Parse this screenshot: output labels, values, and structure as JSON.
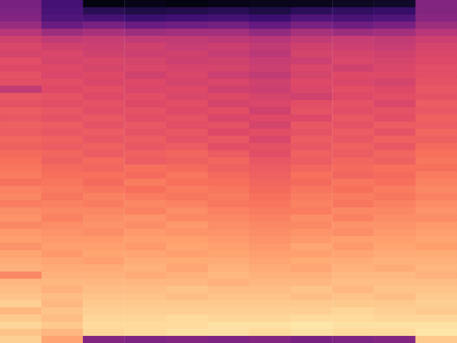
{
  "chart_data": {
    "type": "heatmap",
    "tick_labels": false,
    "grid": false,
    "zlim": [
      -80,
      0
    ],
    "cells": [
      [
        -52,
        -62,
        -78,
        -77,
        -78,
        -77,
        -76,
        -76,
        -75,
        -74,
        -50
      ],
      [
        -51,
        -61,
        -68,
        -70,
        -69,
        -68,
        -70,
        -67,
        -66,
        -65,
        -50
      ],
      [
        -50,
        -60,
        -62,
        -64,
        -63,
        -62,
        -64,
        -60,
        -61,
        -60,
        -49
      ],
      [
        -46,
        -55,
        -52,
        -55,
        -54,
        -53,
        -56,
        -52,
        -54,
        -52,
        -45
      ],
      [
        -40,
        -45,
        -43,
        -45,
        -44,
        -44,
        -47,
        -43,
        -45,
        -44,
        -40
      ],
      [
        -35,
        -38,
        -37,
        -38,
        -38,
        -39,
        -40,
        -38,
        -37,
        -38,
        -36
      ],
      [
        -33,
        -35,
        -36,
        -35,
        -37,
        -36,
        -38,
        -35,
        -36,
        -37,
        -34
      ],
      [
        -34,
        -33,
        -35,
        -36,
        -35,
        -37,
        -39,
        -34,
        -34,
        -35,
        -33
      ],
      [
        -31,
        -34,
        -33,
        -34,
        -36,
        -35,
        -37,
        -36,
        -33,
        -34,
        -32
      ],
      [
        -32,
        -32,
        -34,
        -33,
        -34,
        -34,
        -36,
        -33,
        -35,
        -33,
        -31
      ],
      [
        -30,
        -33,
        -32,
        -35,
        -33,
        -36,
        -38,
        -34,
        -32,
        -32,
        -31
      ],
      [
        -31,
        -31,
        -33,
        -32,
        -34,
        -33,
        -35,
        -32,
        -33,
        -34,
        -30
      ],
      [
        -38,
        -32,
        -31,
        -33,
        -32,
        -35,
        -36,
        -33,
        -31,
        -32,
        -29
      ],
      [
        -29,
        -30,
        -32,
        -31,
        -33,
        -32,
        -34,
        -35,
        -32,
        -31,
        -30
      ],
      [
        -30,
        -31,
        -30,
        -32,
        -31,
        -34,
        -33,
        -31,
        -30,
        -33,
        -28
      ],
      [
        -28,
        -29,
        -31,
        -30,
        -32,
        -31,
        -35,
        -30,
        -31,
        -30,
        -29
      ],
      [
        -29,
        -30,
        -29,
        -31,
        -30,
        -33,
        -32,
        -32,
        -29,
        -31,
        -27
      ],
      [
        -27,
        -28,
        -30,
        -29,
        -31,
        -30,
        -34,
        -29,
        -30,
        -28,
        -28
      ],
      [
        -28,
        -29,
        -28,
        -30,
        -29,
        -32,
        -31,
        -30,
        -28,
        -30,
        -26
      ],
      [
        -26,
        -27,
        -29,
        -28,
        -30,
        -29,
        -33,
        -28,
        -29,
        -27,
        -27
      ],
      [
        -27,
        -28,
        -27,
        -29,
        -28,
        -31,
        -30,
        -29,
        -27,
        -29,
        -25
      ],
      [
        -25,
        -26,
        -28,
        -27,
        -26,
        -28,
        -31,
        -27,
        -28,
        -26,
        -24
      ],
      [
        -24,
        -27,
        -25,
        -28,
        -27,
        -26,
        -29,
        -28,
        -26,
        -27,
        -23
      ],
      [
        -23,
        -25,
        -26,
        -24,
        -25,
        -27,
        -28,
        -26,
        -25,
        -24,
        -24
      ],
      [
        -22,
        -24,
        -24,
        -25,
        -23,
        -25,
        -27,
        -24,
        -26,
        -25,
        -22
      ],
      [
        -24,
        -23,
        -25,
        -22,
        -24,
        -24,
        -26,
        -25,
        -23,
        -24,
        -21
      ],
      [
        -21,
        -22,
        -23,
        -24,
        -22,
        -23,
        -25,
        -23,
        -24,
        -22,
        -20
      ],
      [
        -20,
        -23,
        -21,
        -22,
        -23,
        -22,
        -24,
        -22,
        -22,
        -23,
        -21
      ],
      [
        -22,
        -21,
        -22,
        -20,
        -21,
        -23,
        -23,
        -21,
        -23,
        -21,
        -19
      ],
      [
        -19,
        -20,
        -20,
        -21,
        -19,
        -21,
        -22,
        -22,
        -20,
        -20,
        -18
      ],
      [
        -18,
        -21,
        -19,
        -18,
        -20,
        -20,
        -21,
        -19,
        -21,
        -19,
        -19
      ],
      [
        -20,
        -19,
        -18,
        -19,
        -17,
        -19,
        -20,
        -20,
        -18,
        -18,
        -17
      ],
      [
        -17,
        -18,
        -19,
        -17,
        -18,
        -18,
        -19,
        -18,
        -19,
        -17,
        -16
      ],
      [
        -16,
        -17,
        -17,
        -16,
        -16,
        -17,
        -18,
        -17,
        -16,
        -16,
        -15
      ],
      [
        -18,
        -16,
        -16,
        -17,
        -15,
        -16,
        -17,
        -15,
        -17,
        -15,
        -16
      ],
      [
        -15,
        -17,
        -15,
        -15,
        -16,
        -15,
        -16,
        -16,
        -15,
        -14,
        -14
      ],
      [
        -14,
        -15,
        -16,
        -14,
        -14,
        -14,
        -15,
        -14,
        -14,
        -13,
        -13
      ],
      [
        -13,
        -14,
        -14,
        -13,
        -15,
        -13,
        -14,
        -15,
        -13,
        -14,
        -12
      ],
      [
        -20,
        -13,
        -13,
        -14,
        -13,
        -12,
        -13,
        -13,
        -12,
        -12,
        -13
      ],
      [
        -12,
        -12,
        -12,
        -12,
        -12,
        -13,
        -12,
        -12,
        -11,
        -11,
        -11
      ],
      [
        -11,
        -13,
        -11,
        -11,
        -10,
        -11,
        -11,
        -10,
        -12,
        -10,
        -10
      ],
      [
        -10,
        -11,
        -10,
        -10,
        -11,
        -10,
        -10,
        -11,
        -10,
        -11,
        -9
      ],
      [
        -8,
        -12,
        -9,
        -9,
        -9,
        -9,
        -9,
        -9,
        -9,
        -9,
        -8
      ],
      [
        -12,
        -10,
        -8,
        -8,
        -8,
        -8,
        -8,
        -8,
        -7,
        -8,
        -9
      ],
      [
        -9,
        -11,
        -7,
        -7,
        -6,
        -7,
        -7,
        -6,
        -6,
        -7,
        -7
      ],
      [
        -7,
        -9,
        -6,
        -6,
        -6,
        -5,
        -5,
        -4,
        -5,
        -5,
        -5
      ],
      [
        -10,
        -12,
        -7,
        -6,
        -5,
        -5,
        -6,
        -5,
        -6,
        -6,
        -4
      ],
      [
        -8,
        -15,
        -50,
        -51,
        -50,
        -51,
        -50,
        -52,
        -51,
        -50,
        -9
      ]
    ]
  }
}
